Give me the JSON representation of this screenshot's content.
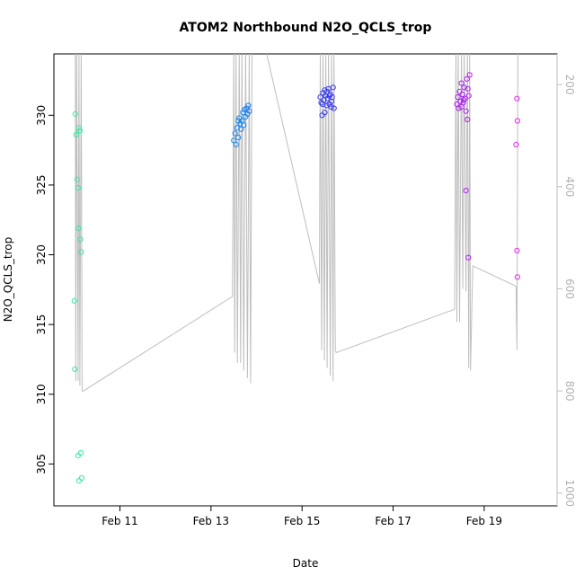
{
  "chart_data": {
    "type": "scatter",
    "title": "ATOM2 Northbound N2O_QCLS_trop",
    "xlabel": "Date",
    "ylabel": "N2O_QCLS_trop",
    "x_ticks": [
      "Feb 11",
      "Feb 13",
      "Feb 15",
      "Feb 17",
      "Feb 19"
    ],
    "x_tick_days": [
      11,
      13,
      15,
      17,
      19
    ],
    "xlim_days": [
      9.55,
      20.6
    ],
    "ylim": [
      302,
      334.4
    ],
    "y_ticks": [
      305,
      310,
      315,
      320,
      325,
      330
    ],
    "right_axis": {
      "description": "pressure overlay (grey line)",
      "ylim_top_to_bottom": [
        140,
        1025
      ],
      "ticks": [
        200,
        400,
        600,
        800,
        1000
      ],
      "color": "#bebebe"
    },
    "colors": {
      "point_gradient": [
        "#40e8a0",
        "#10c8f0",
        "#2040f0",
        "#6a20f0",
        "#f020f0"
      ],
      "line": "#bebebe"
    },
    "points": [
      {
        "day": 10.02,
        "y": 330.1
      },
      {
        "day": 10.04,
        "y": 328.6
      },
      {
        "day": 10.06,
        "y": 325.4
      },
      {
        "day": 10.08,
        "y": 324.8
      },
      {
        "day": 10.09,
        "y": 321.9
      },
      {
        "day": 10.1,
        "y": 329.1
      },
      {
        "day": 10.12,
        "y": 328.9
      },
      {
        "day": 10.13,
        "y": 321.1
      },
      {
        "day": 10.15,
        "y": 320.2
      },
      {
        "day": 10.0,
        "y": 316.7
      },
      {
        "day": 10.01,
        "y": 311.8
      },
      {
        "day": 10.08,
        "y": 305.6
      },
      {
        "day": 10.14,
        "y": 305.8
      },
      {
        "day": 10.1,
        "y": 303.8
      },
      {
        "day": 10.16,
        "y": 304.0
      },
      {
        "day": 13.5,
        "y": 328.2
      },
      {
        "day": 13.53,
        "y": 328.7
      },
      {
        "day": 13.55,
        "y": 327.9
      },
      {
        "day": 13.57,
        "y": 329.1
      },
      {
        "day": 13.6,
        "y": 328.4
      },
      {
        "day": 13.62,
        "y": 329.8
      },
      {
        "day": 13.64,
        "y": 329.4
      },
      {
        "day": 13.66,
        "y": 329.0
      },
      {
        "day": 13.68,
        "y": 329.6
      },
      {
        "day": 13.7,
        "y": 330.2
      },
      {
        "day": 13.72,
        "y": 329.3
      },
      {
        "day": 13.74,
        "y": 330.4
      },
      {
        "day": 13.76,
        "y": 329.9
      },
      {
        "day": 13.78,
        "y": 330.5
      },
      {
        "day": 13.8,
        "y": 330.1
      },
      {
        "day": 13.82,
        "y": 330.7
      },
      {
        "day": 13.84,
        "y": 330.3
      },
      {
        "day": 13.6,
        "y": 329.6
      },
      {
        "day": 15.4,
        "y": 331.3
      },
      {
        "day": 15.42,
        "y": 330.9
      },
      {
        "day": 15.44,
        "y": 330.0
      },
      {
        "day": 15.46,
        "y": 331.6
      },
      {
        "day": 15.48,
        "y": 331.1
      },
      {
        "day": 15.5,
        "y": 331.8
      },
      {
        "day": 15.52,
        "y": 331.4
      },
      {
        "day": 15.54,
        "y": 330.7
      },
      {
        "day": 15.56,
        "y": 331.2
      },
      {
        "day": 15.58,
        "y": 331.9
      },
      {
        "day": 15.6,
        "y": 330.8
      },
      {
        "day": 15.62,
        "y": 331.5
      },
      {
        "day": 15.64,
        "y": 330.6
      },
      {
        "day": 15.66,
        "y": 331.3
      },
      {
        "day": 15.68,
        "y": 332.0
      },
      {
        "day": 15.7,
        "y": 330.5
      },
      {
        "day": 15.45,
        "y": 330.8
      },
      {
        "day": 15.55,
        "y": 331.7
      },
      {
        "day": 15.65,
        "y": 331.0
      },
      {
        "day": 15.5,
        "y": 330.2
      },
      {
        "day": 15.6,
        "y": 331.4
      },
      {
        "day": 18.4,
        "y": 330.8
      },
      {
        "day": 18.42,
        "y": 331.3
      },
      {
        "day": 18.44,
        "y": 330.5
      },
      {
        "day": 18.46,
        "y": 331.7
      },
      {
        "day": 18.48,
        "y": 331.0
      },
      {
        "day": 18.5,
        "y": 332.3
      },
      {
        "day": 18.52,
        "y": 331.5
      },
      {
        "day": 18.54,
        "y": 330.9
      },
      {
        "day": 18.56,
        "y": 332.0
      },
      {
        "day": 18.58,
        "y": 331.2
      },
      {
        "day": 18.6,
        "y": 330.3
      },
      {
        "day": 18.62,
        "y": 332.6
      },
      {
        "day": 18.64,
        "y": 331.9
      },
      {
        "day": 18.66,
        "y": 331.4
      },
      {
        "day": 18.68,
        "y": 332.9
      },
      {
        "day": 18.5,
        "y": 330.6
      },
      {
        "day": 18.55,
        "y": 331.1
      },
      {
        "day": 18.6,
        "y": 324.6
      },
      {
        "day": 18.63,
        "y": 329.7
      },
      {
        "day": 18.65,
        "y": 319.8
      },
      {
        "day": 19.72,
        "y": 331.2
      },
      {
        "day": 19.73,
        "y": 329.6
      },
      {
        "day": 19.7,
        "y": 327.9
      },
      {
        "day": 19.72,
        "y": 320.3
      },
      {
        "day": 19.73,
        "y": 318.4
      }
    ],
    "pressure_line": [
      {
        "day": 10.02,
        "p": 120
      },
      {
        "day": 10.03,
        "p": 780
      },
      {
        "day": 10.05,
        "p": 120
      },
      {
        "day": 10.08,
        "p": 780
      },
      {
        "day": 10.1,
        "p": 120
      },
      {
        "day": 10.12,
        "p": 790
      },
      {
        "day": 10.15,
        "p": 120
      },
      {
        "day": 10.17,
        "p": 800
      },
      {
        "day": 10.2,
        "p": 800
      },
      {
        "day": 13.47,
        "p": 615
      },
      {
        "day": 13.5,
        "p": 120
      },
      {
        "day": 13.52,
        "p": 725
      },
      {
        "day": 13.55,
        "p": 120
      },
      {
        "day": 13.58,
        "p": 745
      },
      {
        "day": 13.62,
        "p": 120
      },
      {
        "day": 13.65,
        "p": 745
      },
      {
        "day": 13.68,
        "p": 120
      },
      {
        "day": 13.72,
        "p": 760
      },
      {
        "day": 13.76,
        "p": 120
      },
      {
        "day": 13.8,
        "p": 775
      },
      {
        "day": 13.84,
        "p": 120
      },
      {
        "day": 13.87,
        "p": 785
      },
      {
        "day": 13.9,
        "p": 120
      },
      {
        "day": 14.2,
        "p": 120
      },
      {
        "day": 15.38,
        "p": 590
      },
      {
        "day": 15.4,
        "p": 120
      },
      {
        "day": 15.43,
        "p": 720
      },
      {
        "day": 15.46,
        "p": 120
      },
      {
        "day": 15.49,
        "p": 740
      },
      {
        "day": 15.52,
        "p": 120
      },
      {
        "day": 15.55,
        "p": 755
      },
      {
        "day": 15.58,
        "p": 120
      },
      {
        "day": 15.62,
        "p": 770
      },
      {
        "day": 15.65,
        "p": 120
      },
      {
        "day": 15.68,
        "p": 780
      },
      {
        "day": 15.7,
        "p": 120
      },
      {
        "day": 15.73,
        "p": 720
      },
      {
        "day": 15.75,
        "p": 725
      },
      {
        "day": 18.35,
        "p": 640
      },
      {
        "day": 18.38,
        "p": 120
      },
      {
        "day": 18.4,
        "p": 665
      },
      {
        "day": 18.43,
        "p": 120
      },
      {
        "day": 18.46,
        "p": 665
      },
      {
        "day": 18.5,
        "p": 120
      },
      {
        "day": 18.53,
        "p": 600
      },
      {
        "day": 18.56,
        "p": 120
      },
      {
        "day": 18.6,
        "p": 605
      },
      {
        "day": 18.63,
        "p": 120
      },
      {
        "day": 18.66,
        "p": 755
      },
      {
        "day": 18.68,
        "p": 120
      },
      {
        "day": 18.7,
        "p": 760
      },
      {
        "day": 18.75,
        "p": 555
      },
      {
        "day": 19.7,
        "p": 595
      },
      {
        "day": 19.72,
        "p": 720
      },
      {
        "day": 19.74,
        "p": 120
      }
    ]
  }
}
